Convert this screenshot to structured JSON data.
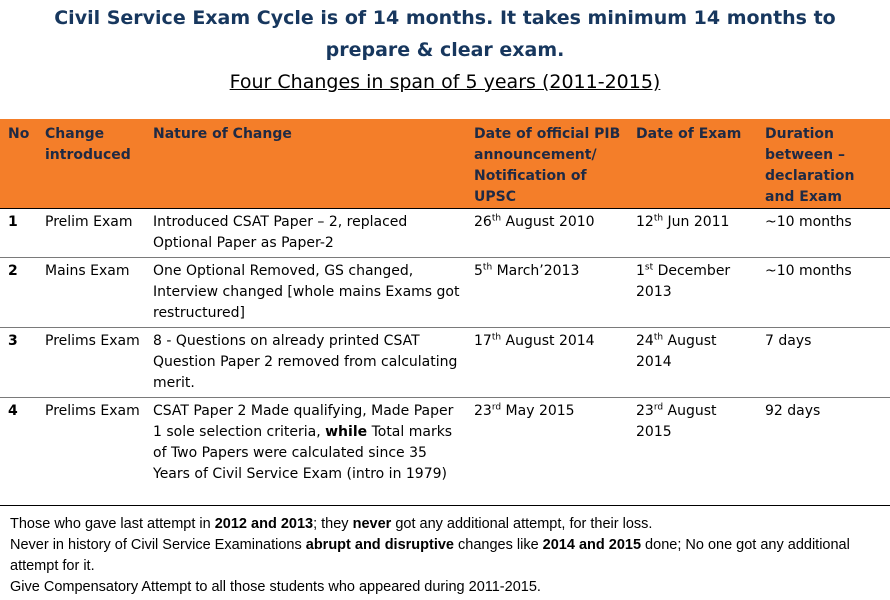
{
  "heading": {
    "line1": "Civil Service Exam Cycle is of 14 months. It takes minimum 14 months to",
    "line2": "prepare & clear exam.",
    "line3": "Four Changes in span of 5 years (2011-2015)"
  },
  "table": {
    "headers": {
      "no": "No",
      "change": "Change introduced",
      "nature": "Nature of Change",
      "pib": "Date of official PIB announcement/ Notification of UPSC",
      "exam": "Date of Exam",
      "duration": "Duration between – declaration and Exam"
    },
    "rows": [
      {
        "no": "1",
        "change": "Prelim Exam",
        "nature": "Introduced CSAT Paper – 2, replaced Optional Paper as Paper-2",
        "pib_day": "26",
        "pib_sup": "th",
        "pib_rest": " August 2010",
        "exam_day": "12",
        "exam_sup": "th",
        "exam_rest": " Jun 2011",
        "duration": "~10 months"
      },
      {
        "no": "2",
        "change": "Mains Exam",
        "nature": "One Optional Removed, GS changed, Interview changed [whole mains Exams got restructured]",
        "pib_day": "5",
        "pib_sup": "th",
        "pib_rest": " March’2013",
        "exam_day": "1",
        "exam_sup": "st",
        "exam_rest": " December 2013",
        "duration": "~10 months"
      },
      {
        "no": "3",
        "change": "Prelims Exam",
        "nature": "8 - Questions on already printed CSAT Question Paper 2 removed from calculating merit.",
        "pib_day": "17",
        "pib_sup": "th",
        "pib_rest": "  August 2014",
        "exam_day": "24",
        "exam_sup": "th",
        "exam_rest": " August 2014",
        "duration": "7 days"
      },
      {
        "no": "4",
        "change": "Prelims Exam",
        "nature_a": "CSAT Paper 2 Made qualifying, Made Paper 1 sole selection criteria, ",
        "nature_b": "while",
        "nature_c": " Total marks of Two Papers were calculated since 35 Years of Civil Service Exam (intro in 1979)",
        "pib_day": "23",
        "pib_sup": "rd",
        "pib_rest": " May 2015",
        "exam_day": "23",
        "exam_sup": "rd",
        "exam_rest": " August 2015",
        "duration": "92 days"
      }
    ]
  },
  "footer": {
    "p1_a": "Those who gave last attempt  in ",
    "p1_b": "2012 and 2013",
    "p1_c": "; they ",
    "p1_d": "never",
    "p1_e": " got any additional attempt,  for their loss.",
    "p2_a": "Never in history of Civil Service Examinations ",
    "p2_b": "abrupt and disruptive",
    "p2_c": " changes like ",
    "p2_d": "2014 and 2015",
    "p2_e": " done; No one got any additional attempt for it.",
    "p3": "Give Compensatory Attempt to all those students who appeared during 2011-2015."
  }
}
